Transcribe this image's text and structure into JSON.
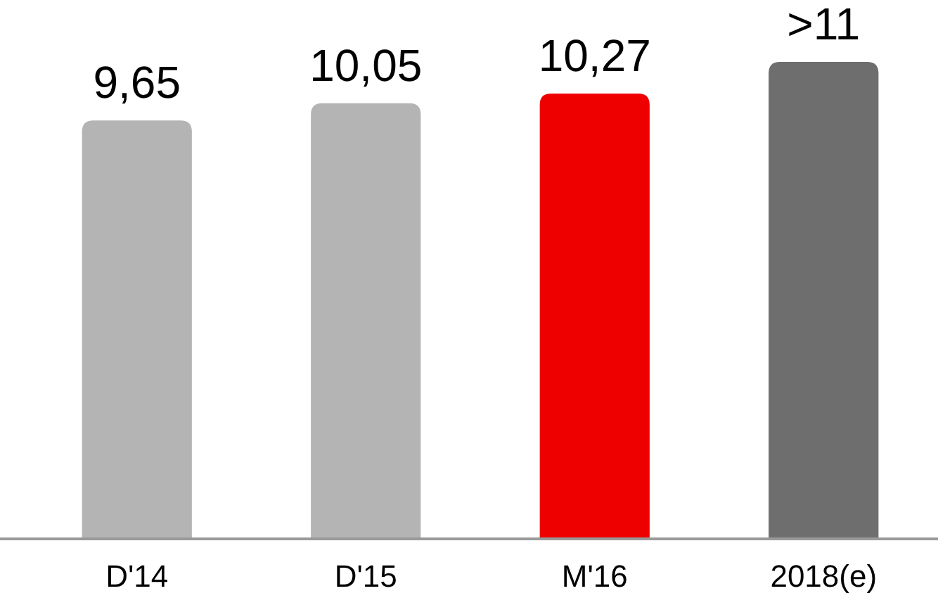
{
  "chart_data": {
    "type": "bar",
    "categories": [
      "D'14",
      "D'15",
      "M'16",
      "2018(e)"
    ],
    "values": [
      9.65,
      10.05,
      10.27,
      11
    ],
    "value_labels": [
      "9,65",
      "10,05",
      "10,27",
      ">11"
    ],
    "colors": [
      "#b4b4b4",
      "#b4b4b4",
      "#ee0000",
      "#6e6e6e"
    ],
    "tick_labels": "x"
  }
}
